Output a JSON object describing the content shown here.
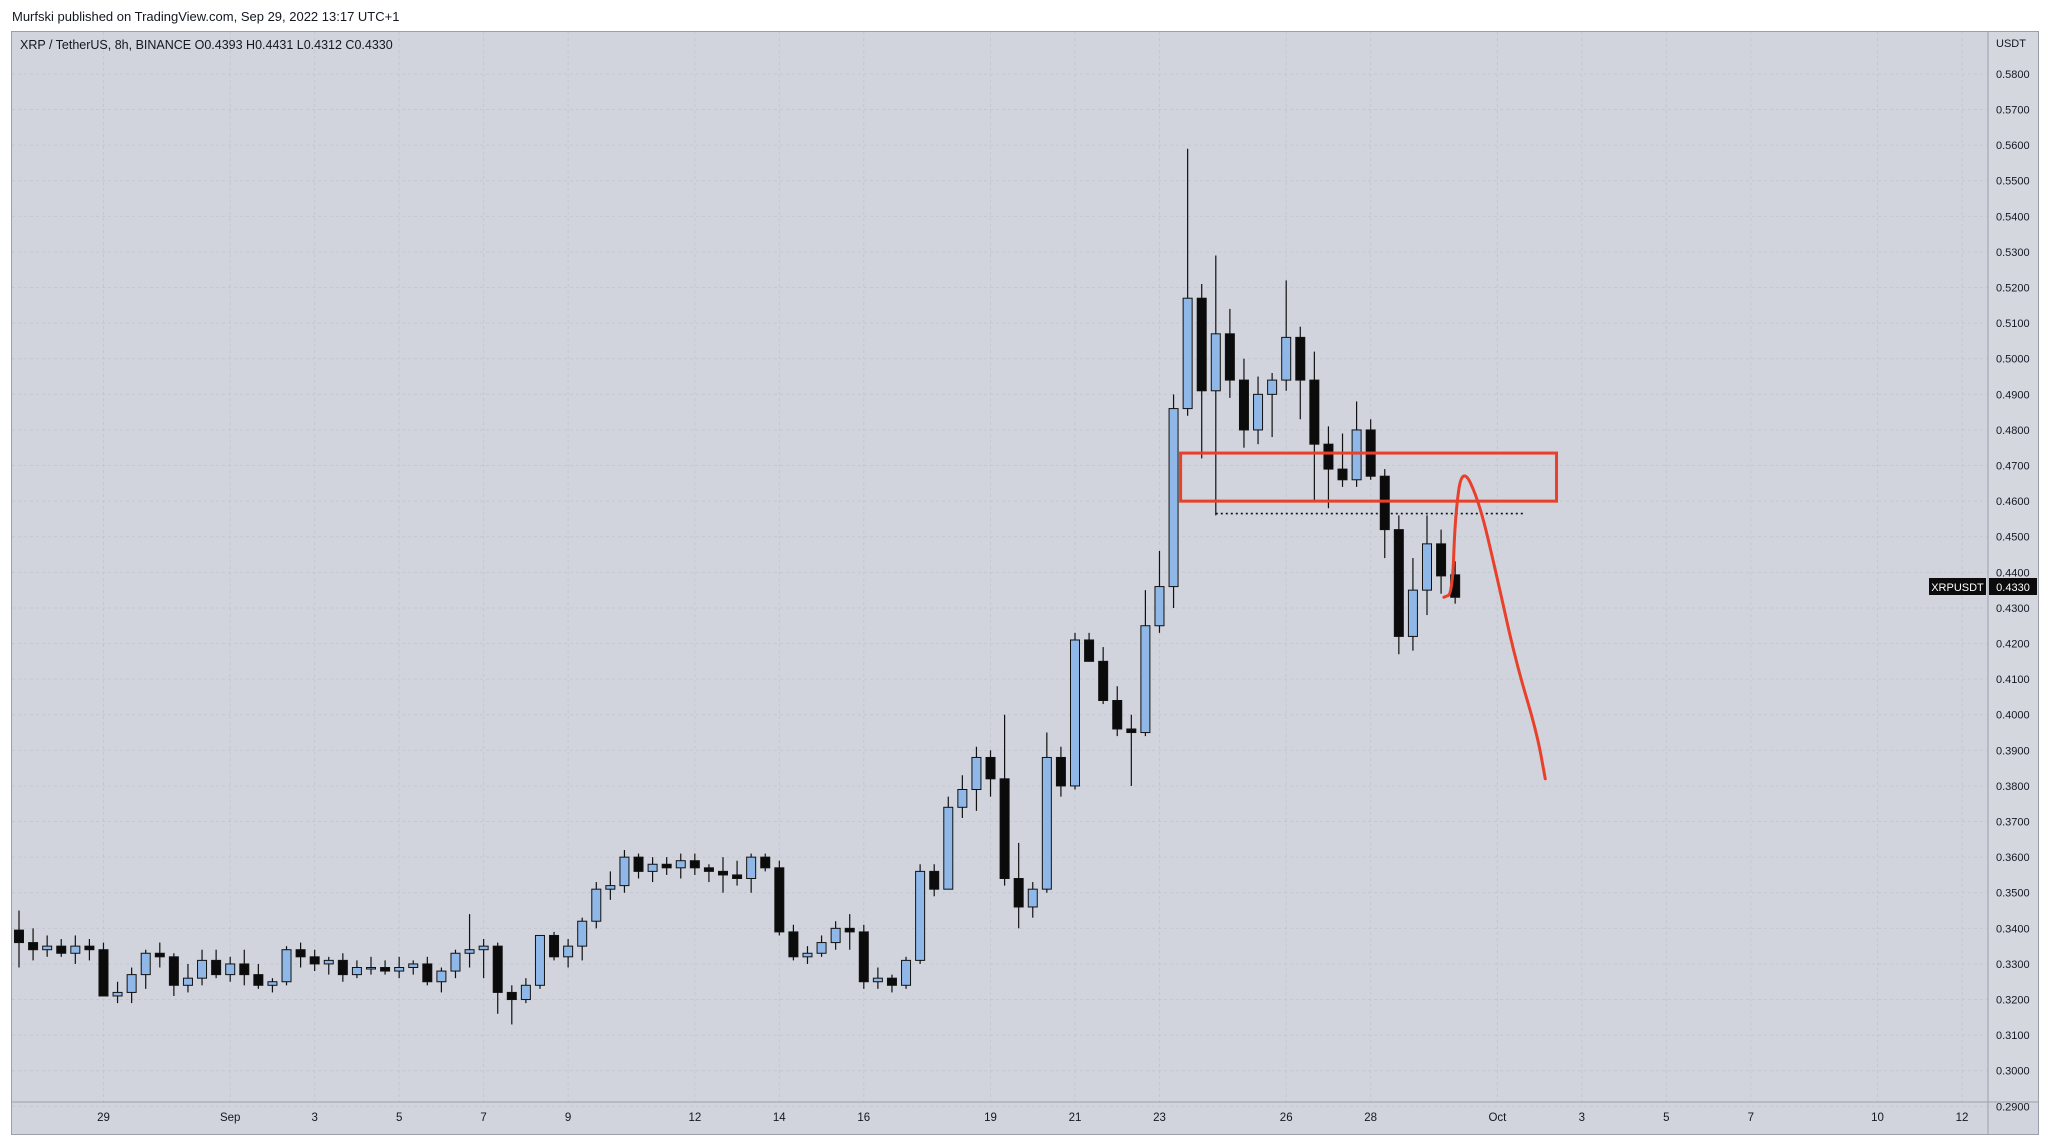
{
  "page": {
    "publisher": "Murfski published on TradingView.com, Sep 29, 2022 13:17 UTC+1",
    "legend": "XRP / TetherUS, 8h, BINANCE  O0.4393  H0.4431  L0.4312  C0.4330",
    "currency_label": "USDT",
    "last_price_symbol": "XRPUSDT",
    "last_price_value": "0.4330"
  },
  "colors": {
    "background": "#d1d4dc",
    "grid": "#c3c7d0",
    "up_candle": "#8fb8e8",
    "down_candle": "#0b0b0b",
    "wick": "#111111",
    "annotation": "#e8402a",
    "text": "#131722"
  },
  "chart_data": {
    "type": "candlestick",
    "timeframe": "8h",
    "symbol": "XRPUSDT",
    "exchange": "BINANCE",
    "ylim": [
      0.285,
      0.585
    ],
    "y_ticks": [
      "0.5800",
      "0.5700",
      "0.5600",
      "0.5500",
      "0.5400",
      "0.5300",
      "0.5200",
      "0.5100",
      "0.5000",
      "0.4900",
      "0.4800",
      "0.4700",
      "0.4600",
      "0.4500",
      "0.4400",
      "0.4300",
      "0.4200",
      "0.4100",
      "0.4000",
      "0.3900",
      "0.3800",
      "0.3700",
      "0.3600",
      "0.3500",
      "0.3400",
      "0.3300",
      "0.3200",
      "0.3100",
      "0.3000",
      "0.2900"
    ],
    "x_ticks": [
      {
        "label": "29",
        "bar": 6
      },
      {
        "label": "Sep",
        "bar": 15
      },
      {
        "label": "3",
        "bar": 21
      },
      {
        "label": "5",
        "bar": 27
      },
      {
        "label": "7",
        "bar": 33
      },
      {
        "label": "9",
        "bar": 39
      },
      {
        "label": "12",
        "bar": 48
      },
      {
        "label": "14",
        "bar": 54
      },
      {
        "label": "16",
        "bar": 60
      },
      {
        "label": "19",
        "bar": 69
      },
      {
        "label": "21",
        "bar": 75
      },
      {
        "label": "23",
        "bar": 81
      },
      {
        "label": "26",
        "bar": 90
      },
      {
        "label": "28",
        "bar": 96
      },
      {
        "label": "Oct",
        "bar": 105
      },
      {
        "label": "3",
        "bar": 111
      },
      {
        "label": "5",
        "bar": 117
      },
      {
        "label": "7",
        "bar": 123
      },
      {
        "label": "10",
        "bar": 132
      },
      {
        "label": "12",
        "bar": 138
      }
    ],
    "candles": [
      [
        0.3395,
        0.345,
        0.329,
        0.336
      ],
      [
        0.336,
        0.34,
        0.331,
        0.334
      ],
      [
        0.334,
        0.338,
        0.332,
        0.335
      ],
      [
        0.335,
        0.337,
        0.332,
        0.333
      ],
      [
        0.333,
        0.338,
        0.33,
        0.335
      ],
      [
        0.335,
        0.337,
        0.331,
        0.334
      ],
      [
        0.334,
        0.336,
        0.321,
        0.321
      ],
      [
        0.321,
        0.325,
        0.319,
        0.322
      ],
      [
        0.322,
        0.329,
        0.319,
        0.327
      ],
      [
        0.327,
        0.334,
        0.323,
        0.333
      ],
      [
        0.333,
        0.336,
        0.329,
        0.332
      ],
      [
        0.332,
        0.333,
        0.321,
        0.324
      ],
      [
        0.324,
        0.33,
        0.322,
        0.326
      ],
      [
        0.326,
        0.334,
        0.324,
        0.331
      ],
      [
        0.331,
        0.334,
        0.326,
        0.327
      ],
      [
        0.327,
        0.332,
        0.325,
        0.33
      ],
      [
        0.33,
        0.334,
        0.324,
        0.327
      ],
      [
        0.327,
        0.33,
        0.323,
        0.324
      ],
      [
        0.324,
        0.326,
        0.322,
        0.325
      ],
      [
        0.325,
        0.335,
        0.324,
        0.334
      ],
      [
        0.334,
        0.336,
        0.329,
        0.332
      ],
      [
        0.332,
        0.334,
        0.328,
        0.33
      ],
      [
        0.33,
        0.332,
        0.327,
        0.331
      ],
      [
        0.331,
        0.333,
        0.325,
        0.327
      ],
      [
        0.327,
        0.331,
        0.326,
        0.329
      ],
      [
        0.329,
        0.332,
        0.327,
        0.329
      ],
      [
        0.329,
        0.331,
        0.327,
        0.328
      ],
      [
        0.328,
        0.332,
        0.326,
        0.329
      ],
      [
        0.329,
        0.331,
        0.327,
        0.33
      ],
      [
        0.33,
        0.332,
        0.324,
        0.325
      ],
      [
        0.325,
        0.329,
        0.322,
        0.328
      ],
      [
        0.328,
        0.334,
        0.326,
        0.333
      ],
      [
        0.333,
        0.344,
        0.329,
        0.334
      ],
      [
        0.334,
        0.337,
        0.326,
        0.335
      ],
      [
        0.335,
        0.336,
        0.316,
        0.322
      ],
      [
        0.322,
        0.324,
        0.313,
        0.32
      ],
      [
        0.32,
        0.326,
        0.319,
        0.324
      ],
      [
        0.324,
        0.338,
        0.323,
        0.338
      ],
      [
        0.338,
        0.339,
        0.331,
        0.332
      ],
      [
        0.332,
        0.337,
        0.329,
        0.335
      ],
      [
        0.335,
        0.343,
        0.331,
        0.342
      ],
      [
        0.342,
        0.353,
        0.34,
        0.351
      ],
      [
        0.351,
        0.356,
        0.348,
        0.352
      ],
      [
        0.352,
        0.362,
        0.35,
        0.36
      ],
      [
        0.36,
        0.361,
        0.354,
        0.356
      ],
      [
        0.356,
        0.36,
        0.353,
        0.358
      ],
      [
        0.358,
        0.36,
        0.355,
        0.357
      ],
      [
        0.357,
        0.361,
        0.354,
        0.359
      ],
      [
        0.359,
        0.361,
        0.355,
        0.357
      ],
      [
        0.357,
        0.358,
        0.353,
        0.356
      ],
      [
        0.356,
        0.36,
        0.35,
        0.355
      ],
      [
        0.355,
        0.359,
        0.352,
        0.354
      ],
      [
        0.354,
        0.361,
        0.35,
        0.36
      ],
      [
        0.36,
        0.361,
        0.356,
        0.357
      ],
      [
        0.357,
        0.359,
        0.338,
        0.339
      ],
      [
        0.339,
        0.341,
        0.331,
        0.332
      ],
      [
        0.332,
        0.335,
        0.33,
        0.333
      ],
      [
        0.333,
        0.338,
        0.332,
        0.336
      ],
      [
        0.336,
        0.342,
        0.334,
        0.34
      ],
      [
        0.34,
        0.344,
        0.334,
        0.339
      ],
      [
        0.339,
        0.341,
        0.323,
        0.325
      ],
      [
        0.325,
        0.329,
        0.323,
        0.326
      ],
      [
        0.326,
        0.327,
        0.322,
        0.324
      ],
      [
        0.324,
        0.332,
        0.323,
        0.331
      ],
      [
        0.331,
        0.358,
        0.33,
        0.356
      ],
      [
        0.356,
        0.358,
        0.349,
        0.351
      ],
      [
        0.351,
        0.377,
        0.351,
        0.374
      ],
      [
        0.374,
        0.383,
        0.371,
        0.379
      ],
      [
        0.379,
        0.391,
        0.373,
        0.388
      ],
      [
        0.388,
        0.39,
        0.377,
        0.382
      ],
      [
        0.382,
        0.4,
        0.352,
        0.354
      ],
      [
        0.354,
        0.364,
        0.34,
        0.346
      ],
      [
        0.346,
        0.353,
        0.343,
        0.351
      ],
      [
        0.351,
        0.395,
        0.35,
        0.388
      ],
      [
        0.388,
        0.391,
        0.377,
        0.38
      ],
      [
        0.38,
        0.423,
        0.379,
        0.421
      ],
      [
        0.421,
        0.423,
        0.415,
        0.415
      ],
      [
        0.415,
        0.419,
        0.403,
        0.404
      ],
      [
        0.404,
        0.408,
        0.394,
        0.396
      ],
      [
        0.396,
        0.4,
        0.38,
        0.395
      ],
      [
        0.395,
        0.435,
        0.394,
        0.425
      ],
      [
        0.425,
        0.446,
        0.423,
        0.436
      ],
      [
        0.436,
        0.49,
        0.43,
        0.486
      ],
      [
        0.486,
        0.559,
        0.484,
        0.517
      ],
      [
        0.517,
        0.521,
        0.472,
        0.491
      ],
      [
        0.491,
        0.529,
        0.456,
        0.507
      ],
      [
        0.507,
        0.514,
        0.489,
        0.494
      ],
      [
        0.494,
        0.5,
        0.475,
        0.48
      ],
      [
        0.48,
        0.495,
        0.476,
        0.49
      ],
      [
        0.49,
        0.496,
        0.478,
        0.494
      ],
      [
        0.494,
        0.522,
        0.491,
        0.506
      ],
      [
        0.506,
        0.509,
        0.483,
        0.494
      ],
      [
        0.494,
        0.502,
        0.46,
        0.476
      ],
      [
        0.476,
        0.481,
        0.458,
        0.469
      ],
      [
        0.469,
        0.479,
        0.464,
        0.466
      ],
      [
        0.466,
        0.488,
        0.464,
        0.48
      ],
      [
        0.48,
        0.483,
        0.466,
        0.467
      ],
      [
        0.467,
        0.469,
        0.444,
        0.452
      ],
      [
        0.452,
        0.456,
        0.417,
        0.422
      ],
      [
        0.422,
        0.444,
        0.418,
        0.435
      ],
      [
        0.435,
        0.456,
        0.428,
        0.448
      ],
      [
        0.448,
        0.452,
        0.434,
        0.439
      ],
      [
        0.4393,
        0.4431,
        0.4312,
        0.433
      ]
    ],
    "annotations": {
      "resistance_box_price": [
        0.46,
        0.4735
      ],
      "support_line_price": 0.4565,
      "projected_path_prices": [
        0.433,
        0.434,
        0.456,
        0.47,
        0.46,
        0.44,
        0.415,
        0.395,
        0.382
      ]
    }
  }
}
